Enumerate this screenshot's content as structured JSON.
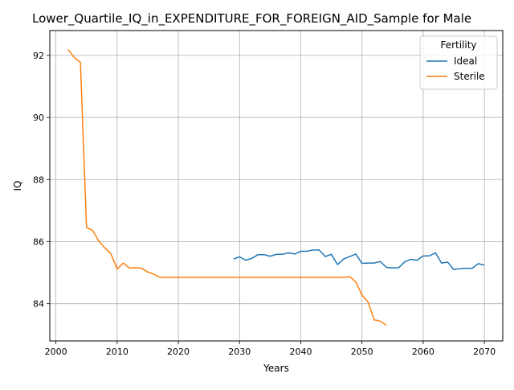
{
  "chart_data": {
    "type": "line",
    "title": "Lower_Quartile_IQ_in_EXPENDITURE_FOR_FOREIGN_AID_Sample for Male",
    "xlabel": "Years",
    "ylabel": "IQ",
    "xlim": [
      1999,
      2073
    ],
    "ylim": [
      82.8,
      92.8
    ],
    "xticks": [
      2000,
      2010,
      2020,
      2030,
      2040,
      2050,
      2060,
      2070
    ],
    "yticks": [
      84,
      86,
      88,
      90,
      92
    ],
    "grid": true,
    "legend": {
      "title": "Fertility",
      "placement": "top-right"
    },
    "series": [
      {
        "name": "Ideal",
        "color": "#1f77b4",
        "x": [
          2029,
          2030,
          2031,
          2032,
          2033,
          2034,
          2035,
          2036,
          2037,
          2038,
          2039,
          2040,
          2041,
          2042,
          2043,
          2044,
          2045,
          2046,
          2047,
          2048,
          2049,
          2050,
          2051,
          2052,
          2053,
          2054,
          2055,
          2056,
          2057,
          2058,
          2059,
          2060,
          2061,
          2062,
          2063,
          2064,
          2065,
          2066,
          2067,
          2068,
          2069,
          2070
        ],
        "y": [
          85.44,
          85.51,
          85.4,
          85.46,
          85.58,
          85.58,
          85.53,
          85.59,
          85.59,
          85.64,
          85.6,
          85.69,
          85.69,
          85.73,
          85.73,
          85.52,
          85.59,
          85.26,
          85.44,
          85.52,
          85.6,
          85.3,
          85.31,
          85.31,
          85.36,
          85.17,
          85.15,
          85.16,
          85.35,
          85.43,
          85.4,
          85.54,
          85.54,
          85.64,
          85.31,
          85.34,
          85.1,
          85.13,
          85.14,
          85.14,
          85.29,
          85.24
        ]
      },
      {
        "name": "Sterile",
        "color": "#ff7f0e",
        "x": [
          2002,
          2003,
          2004,
          2005,
          2006,
          2007,
          2008,
          2009,
          2010,
          2011,
          2012,
          2013,
          2014,
          2015,
          2016,
          2017,
          2018,
          2019,
          2020,
          2021,
          2022,
          2023,
          2024,
          2025,
          2026,
          2027,
          2028,
          2029,
          2030,
          2031,
          2032,
          2033,
          2034,
          2035,
          2036,
          2037,
          2038,
          2039,
          2040,
          2041,
          2042,
          2043,
          2044,
          2045,
          2046,
          2047,
          2048,
          2049,
          2050,
          2051,
          2052,
          2053,
          2054
        ],
        "y": [
          92.19,
          91.93,
          91.78,
          86.46,
          86.36,
          86.02,
          85.8,
          85.6,
          85.12,
          85.31,
          85.15,
          85.16,
          85.14,
          85.02,
          84.95,
          84.85,
          84.85,
          84.85,
          84.85,
          84.85,
          84.85,
          84.85,
          84.85,
          84.85,
          84.85,
          84.85,
          84.85,
          84.85,
          84.85,
          84.85,
          84.85,
          84.85,
          84.85,
          84.85,
          84.85,
          84.85,
          84.85,
          84.85,
          84.85,
          84.85,
          84.85,
          84.85,
          84.85,
          84.85,
          84.85,
          84.85,
          84.87,
          84.7,
          84.28,
          84.05,
          83.48,
          83.44,
          83.3
        ]
      }
    ]
  }
}
